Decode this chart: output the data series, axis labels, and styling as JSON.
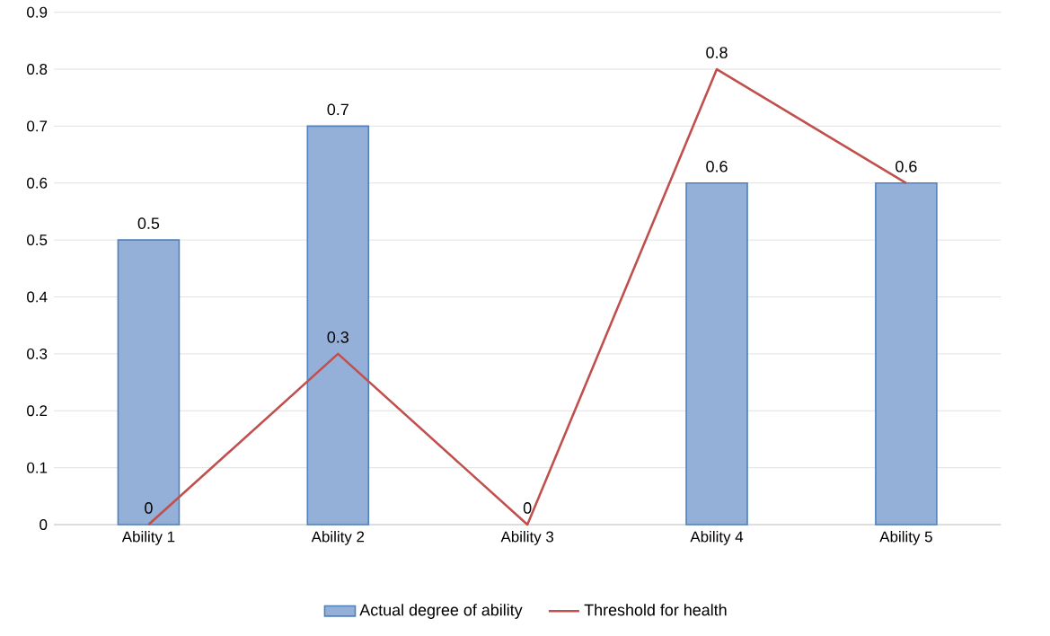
{
  "chart_data": {
    "type": "bar",
    "categories": [
      "Ability 1",
      "Ability 2",
      "Ability 3",
      "Ability 4",
      "Ability 5"
    ],
    "series": [
      {
        "name": "Actual degree of ability",
        "color": "#95b0d8",
        "values": [
          0.5,
          0.7,
          null,
          0.6,
          0.6
        ],
        "value_labels": [
          "0.5",
          "0.7",
          null,
          "0.6",
          "0.6"
        ]
      },
      {
        "name": "Threshold for health",
        "type": "line",
        "color": "#c0504d",
        "values": [
          0,
          0.3,
          0,
          0.8,
          0.6
        ],
        "value_labels": [
          "0",
          "0.3",
          "0",
          "0.8",
          null
        ]
      }
    ],
    "ylim": [
      0,
      0.9
    ],
    "yticks": [
      0,
      0.1,
      0.2,
      0.3,
      0.4,
      0.5,
      0.6,
      0.7,
      0.8,
      0.9
    ],
    "grid": "y",
    "legend": "bottom",
    "marker": "none",
    "line_style": "solid"
  }
}
